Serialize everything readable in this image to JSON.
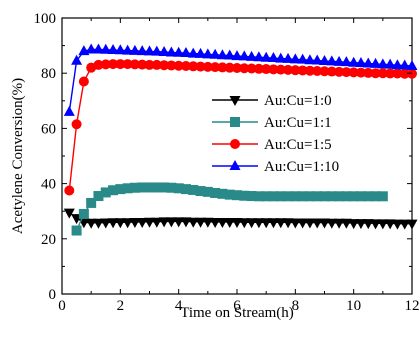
{
  "chart_data": {
    "type": "line",
    "title": "",
    "xlabel": "Time on Stream(h)",
    "ylabel": "Acetylene Conversion(%)",
    "xlim": [
      0,
      12
    ],
    "ylim": [
      0,
      100
    ],
    "xticks": [
      0,
      2,
      4,
      6,
      8,
      10,
      12
    ],
    "yticks": [
      0,
      20,
      40,
      60,
      80,
      100
    ],
    "grid": false,
    "legend_position": "center-right",
    "series": [
      {
        "name": "Au:Cu=1:0",
        "color": "#000000",
        "marker": "triangle-down",
        "x": [
          0.25,
          0.5,
          0.75,
          1.0,
          1.25,
          1.5,
          1.75,
          2.0,
          2.25,
          2.5,
          2.75,
          3.0,
          3.25,
          3.5,
          3.75,
          4.0,
          4.25,
          4.5,
          4.75,
          5.0,
          5.25,
          5.5,
          5.75,
          6.0,
          6.25,
          6.5,
          6.75,
          7.0,
          7.25,
          7.5,
          7.75,
          8.0,
          8.25,
          8.5,
          8.75,
          9.0,
          9.25,
          9.5,
          9.75,
          10.0,
          10.25,
          10.5,
          10.75,
          11.0,
          11.25,
          11.5,
          11.75,
          12.0
        ],
        "y": [
          29.5,
          27.5,
          26,
          25.8,
          25.8,
          25.9,
          26,
          26,
          26,
          26.1,
          26.1,
          26.2,
          26.2,
          26.3,
          26.3,
          26.3,
          26.3,
          26.2,
          26.2,
          26.2,
          26.1,
          26.1,
          26.1,
          26.1,
          26,
          26,
          26,
          26,
          26,
          26,
          26,
          25.9,
          25.9,
          25.9,
          25.9,
          25.9,
          25.8,
          25.8,
          25.8,
          25.7,
          25.7,
          25.7,
          25.6,
          25.6,
          25.6,
          25.5,
          25.5,
          25.5
        ]
      },
      {
        "name": "Au:Cu=1:1",
        "color": "#2a8a8a",
        "marker": "square",
        "x": [
          0.5,
          0.75,
          1.0,
          1.25,
          1.5,
          1.75,
          2.0,
          2.25,
          2.5,
          2.75,
          3.0,
          3.25,
          3.5,
          3.75,
          4.0,
          4.25,
          4.5,
          4.75,
          5.0,
          5.25,
          5.5,
          5.75,
          6.0,
          6.25,
          6.5,
          6.75,
          7.0,
          7.25,
          7.5,
          7.75,
          8.0,
          8.25,
          8.5,
          8.75,
          9.0,
          9.25,
          9.5,
          9.75,
          10.0,
          10.25,
          10.5,
          10.75,
          11.0
        ],
        "y": [
          23,
          29,
          33,
          35.5,
          36.8,
          37.6,
          38,
          38.3,
          38.5,
          38.6,
          38.6,
          38.6,
          38.6,
          38.5,
          38.3,
          38,
          37.7,
          37.3,
          37,
          36.6,
          36.3,
          36,
          35.8,
          35.6,
          35.5,
          35.4,
          35.4,
          35.4,
          35.4,
          35.4,
          35.4,
          35.4,
          35.4,
          35.4,
          35.4,
          35.4,
          35.4,
          35.4,
          35.4,
          35.4,
          35.4,
          35.4,
          35.4
        ]
      },
      {
        "name": "Au:Cu=1:5",
        "color": "#ff0000",
        "marker": "circle",
        "x": [
          0.25,
          0.5,
          0.75,
          1.0,
          1.25,
          1.5,
          1.75,
          2.0,
          2.25,
          2.5,
          2.75,
          3.0,
          3.25,
          3.5,
          3.75,
          4.0,
          4.25,
          4.5,
          4.75,
          5.0,
          5.25,
          5.5,
          5.75,
          6.0,
          6.25,
          6.5,
          6.75,
          7.0,
          7.25,
          7.5,
          7.75,
          8.0,
          8.25,
          8.5,
          8.75,
          9.0,
          9.25,
          9.5,
          9.75,
          10.0,
          10.25,
          10.5,
          10.75,
          11.0,
          11.25,
          11.5,
          11.75,
          12.0
        ],
        "y": [
          37.5,
          61.5,
          77,
          82,
          83,
          83.2,
          83.3,
          83.3,
          83.3,
          83.2,
          83.1,
          83,
          83,
          82.9,
          82.8,
          82.7,
          82.6,
          82.5,
          82.4,
          82.3,
          82.2,
          82.1,
          82,
          81.9,
          81.8,
          81.7,
          81.6,
          81.5,
          81.4,
          81.3,
          81.2,
          81.1,
          81,
          80.9,
          80.8,
          80.7,
          80.6,
          80.5,
          80.4,
          80.3,
          80.2,
          80.1,
          80,
          80,
          79.9,
          79.9,
          79.8,
          79.8
        ]
      },
      {
        "name": "Au:Cu=1:10",
        "color": "#0000ff",
        "marker": "triangle-up",
        "x": [
          0.25,
          0.5,
          0.75,
          1.0,
          1.25,
          1.5,
          1.75,
          2.0,
          2.25,
          2.5,
          2.75,
          3.0,
          3.25,
          3.5,
          3.75,
          4.0,
          4.25,
          4.5,
          4.75,
          5.0,
          5.25,
          5.5,
          5.75,
          6.0,
          6.25,
          6.5,
          6.75,
          7.0,
          7.25,
          7.5,
          7.75,
          8.0,
          8.25,
          8.5,
          8.75,
          9.0,
          9.25,
          9.5,
          9.75,
          10.0,
          10.25,
          10.5,
          10.75,
          11.0,
          11.25,
          11.5,
          11.75,
          12.0
        ],
        "y": [
          66,
          84.5,
          88,
          88.6,
          88.6,
          88.5,
          88.4,
          88.3,
          88.2,
          88.1,
          88,
          87.9,
          87.8,
          87.7,
          87.5,
          87.4,
          87.3,
          87.1,
          87,
          86.8,
          86.7,
          86.5,
          86.4,
          86.2,
          86.1,
          85.9,
          85.8,
          85.6,
          85.5,
          85.3,
          85.2,
          85,
          84.9,
          84.7,
          84.6,
          84.4,
          84.3,
          84.1,
          84,
          83.8,
          83.7,
          83.5,
          83.4,
          83.2,
          83.1,
          82.9,
          82.8,
          82.6
        ]
      }
    ]
  }
}
